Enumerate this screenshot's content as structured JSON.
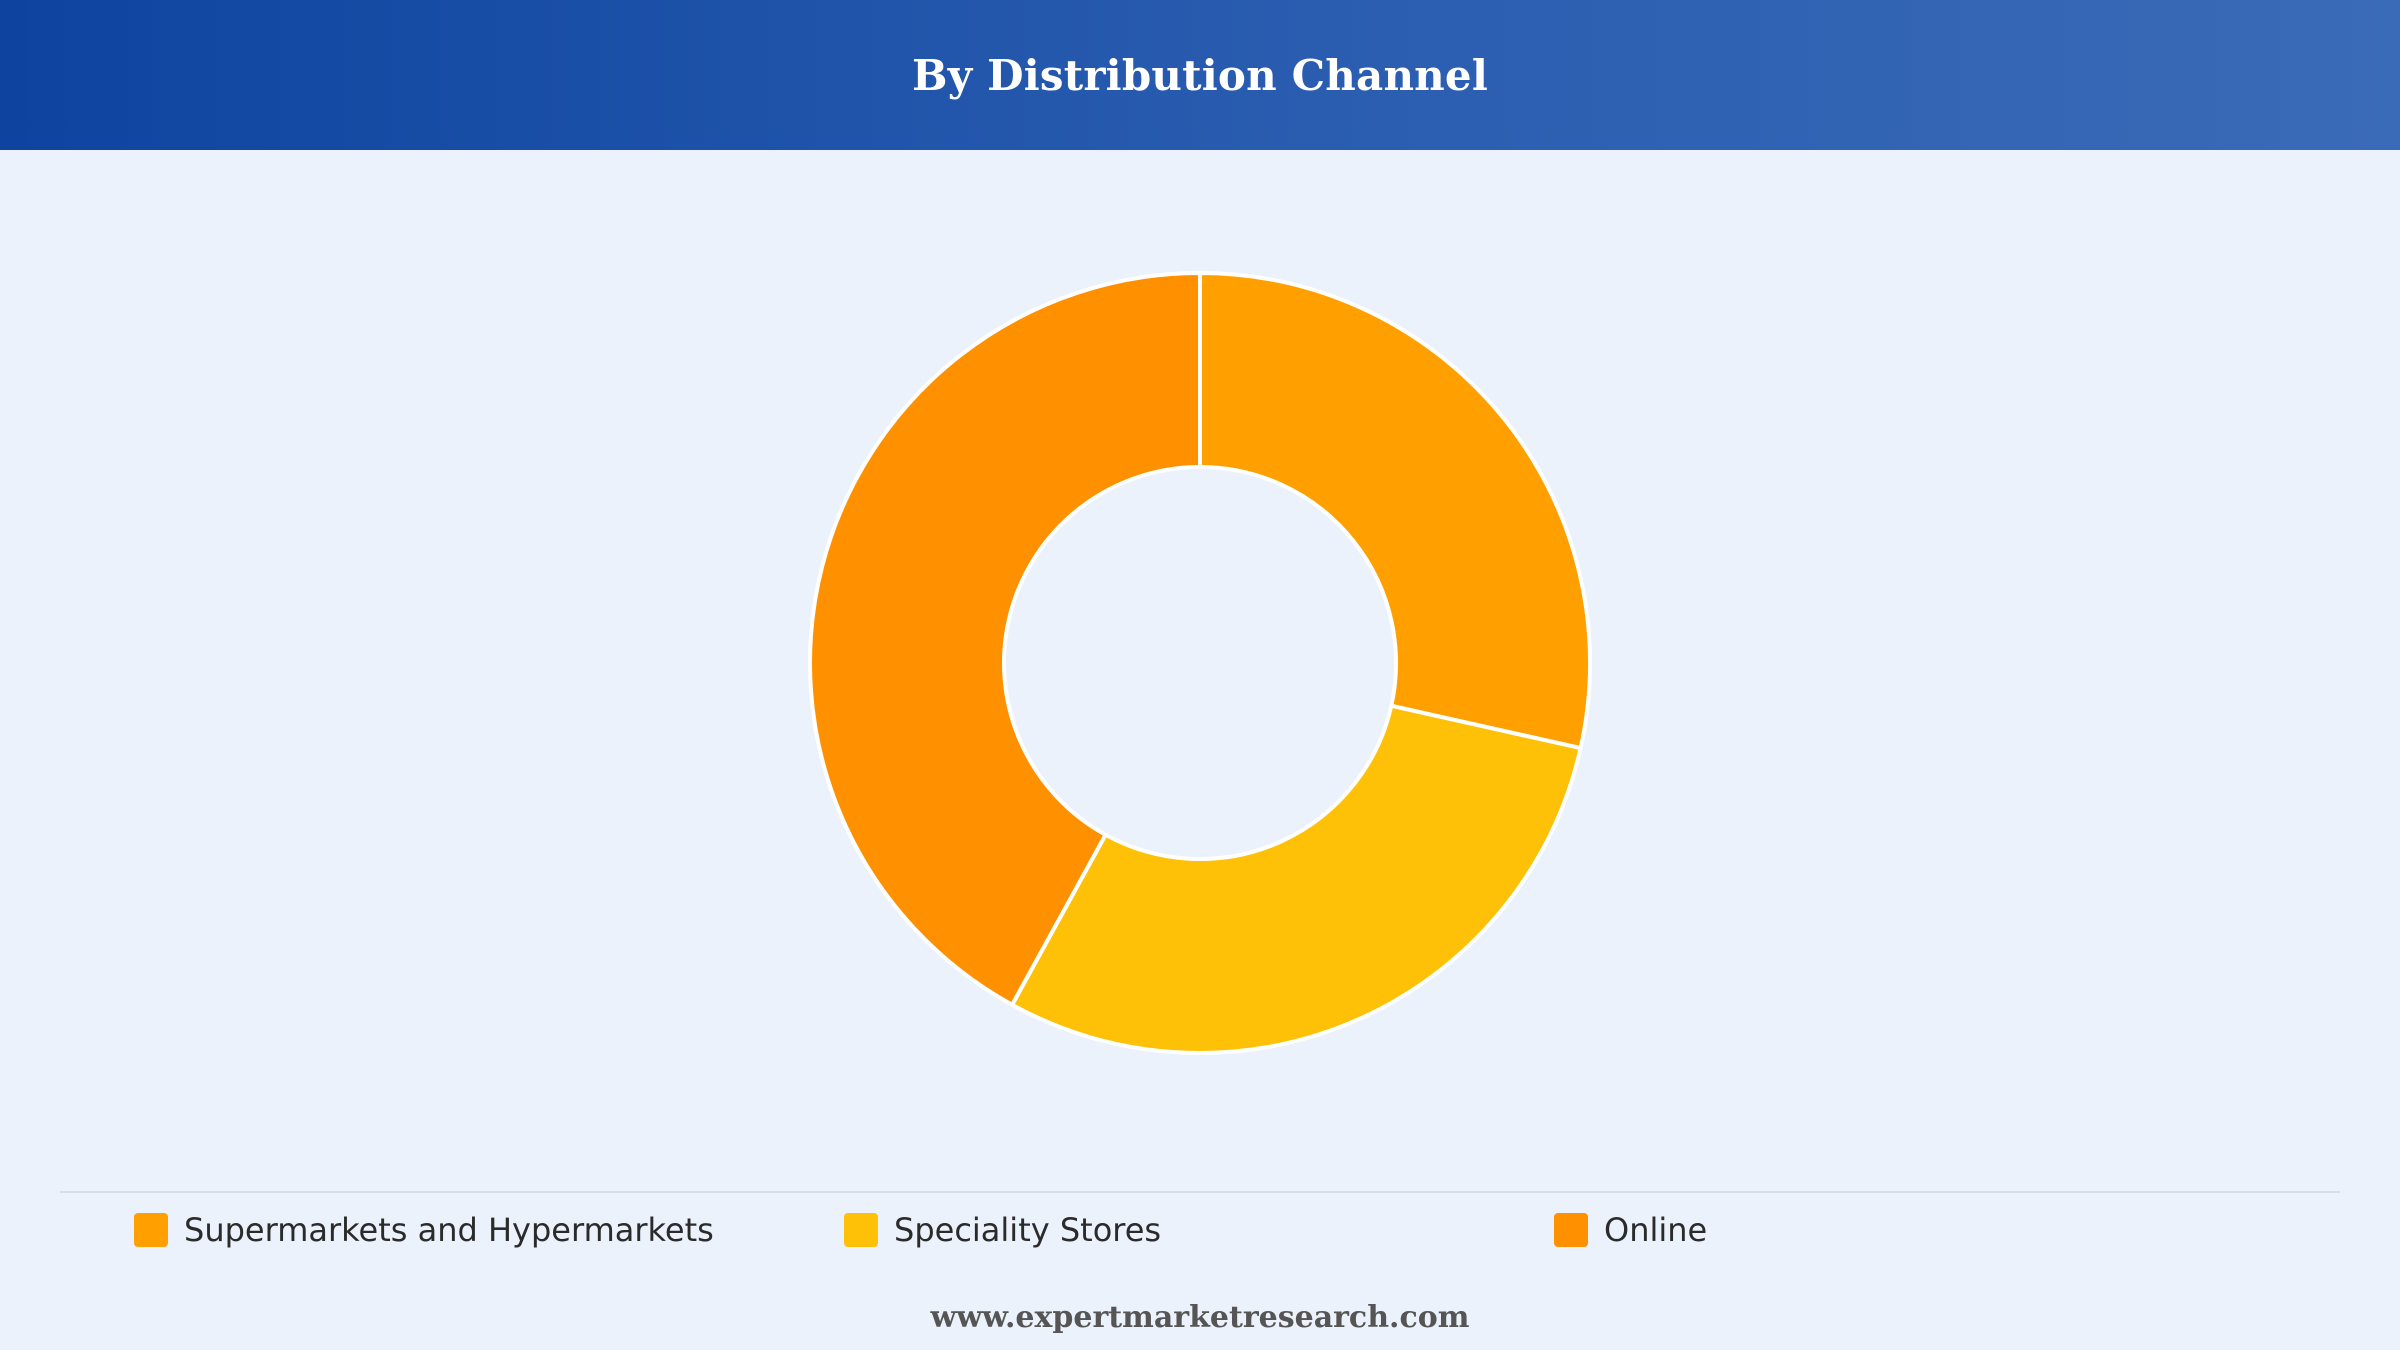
{
  "header": {
    "title": "By Distribution Channel"
  },
  "chart_data": {
    "type": "pie",
    "title": "By Distribution Channel",
    "donut": true,
    "slices": [
      {
        "label": "Supermarkets and Hypermarkets",
        "value": 28.5,
        "color": "#ffa000"
      },
      {
        "label": "Speciality Stores",
        "value": 29.5,
        "color": "#ffc107"
      },
      {
        "label": "Online",
        "value": 42.0,
        "color": "#ff9100"
      }
    ],
    "start_angle_deg": 0,
    "direction": "clockwise",
    "legend_position": "bottom",
    "separator_color": "#ffffff"
  },
  "footer": {
    "source_url": "www.expertmarketresearch.com"
  }
}
